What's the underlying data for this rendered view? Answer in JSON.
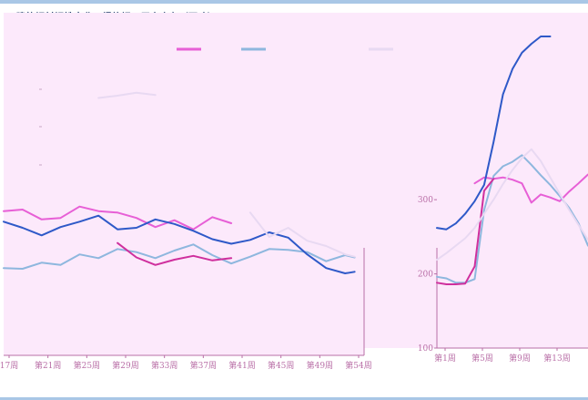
{
  "title": "建筑钢材钢铁企业：螺纹钢：厂内库存（万吨）",
  "colors": {
    "background": "#fce9fb",
    "series1": "#e75fd6",
    "series2": "#8eb7de",
    "series3": "#cf2f9d",
    "series4": "#2e59c8",
    "series5": "#e8d9f2",
    "axis": "#b96fa7",
    "rule": "#a9c7e6",
    "title": "#1f3b6a"
  },
  "chart_data": [
    {
      "type": "line",
      "title": "",
      "x": [
        17,
        19,
        21,
        23,
        25,
        27,
        29,
        31,
        33,
        35,
        37,
        39,
        41,
        43,
        45,
        47,
        49,
        51,
        53,
        54
      ],
      "xticks": [
        "17周",
        "第21周",
        "第25周",
        "第29周",
        "第33周",
        "第37周",
        "第41周",
        "第45周",
        "第49周",
        "第54周"
      ],
      "xlim": [
        17,
        55
      ],
      "ylim": [
        100,
        520
      ],
      "series": [
        {
          "values": [
            290,
            292,
            279,
            281,
            296,
            290,
            288,
            281,
            269,
            278,
            266,
            282,
            274,
            null,
            null,
            null,
            null,
            null,
            null,
            null
          ]
        },
        {
          "values": [
            215,
            214,
            222,
            219,
            233,
            228,
            240,
            236,
            228,
            238,
            246,
            232,
            221,
            230,
            240,
            239,
            236,
            224,
            232,
            229
          ]
        },
        {
          "values": [
            null,
            null,
            null,
            null,
            null,
            null,
            248,
            229,
            219,
            226,
            231,
            225,
            228,
            null,
            null,
            null,
            null,
            null,
            null,
            null
          ]
        },
        {
          "values": [
            276,
            268,
            258,
            269,
            276,
            284,
            266,
            268,
            279,
            273,
            264,
            253,
            247,
            252,
            262,
            255,
            233,
            215,
            208,
            210
          ]
        },
        {
          "values": [
            null,
            null,
            null,
            null,
            null,
            439,
            442,
            446,
            443,
            null,
            null,
            null,
            null,
            288,
            256,
            268,
            251,
            244,
            233,
            230
          ]
        }
      ]
    },
    {
      "type": "line",
      "title": "",
      "x": [
        1,
        2,
        3,
        4,
        5,
        6,
        7,
        8,
        9,
        10,
        11,
        12,
        13,
        14,
        15,
        16,
        17
      ],
      "xticks": [
        "第1周",
        "第5周",
        "第9周",
        "第13周"
      ],
      "yticks": [
        "100",
        "200",
        "300"
      ],
      "ylim": [
        100,
        520
      ],
      "series": [
        {
          "values": [
            null,
            null,
            null,
            null,
            322,
            330,
            328,
            330,
            327,
            322,
            296,
            307,
            303,
            298,
            311,
            322,
            334
          ]
        },
        {
          "values": [
            196,
            194,
            188,
            188,
            193,
            286,
            332,
            345,
            351,
            360,
            347,
            333,
            320,
            305,
            289,
            268,
            238
          ]
        },
        {
          "values": [
            188,
            186,
            186,
            187,
            210,
            312,
            328,
            null,
            null,
            null,
            null,
            null,
            null,
            null,
            null,
            null,
            null
          ]
        },
        {
          "values": [
            262,
            260,
            268,
            281,
            298,
            320,
            378,
            442,
            476,
            498,
            510,
            520,
            520,
            null,
            null,
            null,
            null
          ]
        },
        {
          "values": [
            219,
            228,
            238,
            248,
            262,
            281,
            300,
            321,
            340,
            356,
            368,
            352,
            330,
            308,
            286,
            266,
            246
          ]
        }
      ]
    }
  ]
}
